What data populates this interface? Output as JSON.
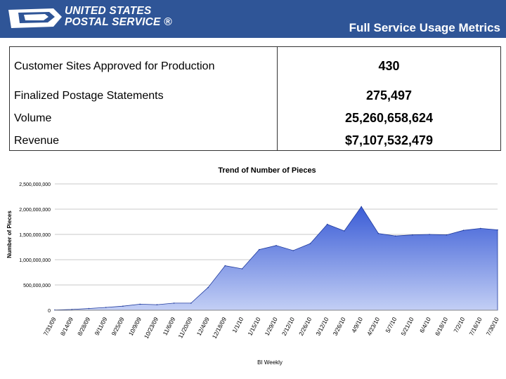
{
  "header": {
    "logo_line1": "UNITED STATES",
    "logo_line2": "POSTAL SERVICE ®",
    "title": "Full Service Usage Metrics",
    "colors": {
      "banner": "#2f5597",
      "text": "#ffffff"
    }
  },
  "metrics": [
    {
      "label": "Customer Sites Approved for Production",
      "value": "430"
    },
    {
      "label": "Finalized Postage Statements",
      "value": "275,497"
    },
    {
      "label": "Volume",
      "value": "25,260,658,624"
    },
    {
      "label": "Revenue",
      "value": "$7,107,532,479"
    }
  ],
  "chart_data": {
    "type": "area",
    "title": "Trend of Number of Pieces",
    "xlabel": "BI Weekly",
    "ylabel": "Number of Pieces",
    "ylim": [
      0,
      2500000000
    ],
    "yticks": [
      0,
      500000000,
      1000000000,
      1500000000,
      2000000000,
      2500000000
    ],
    "ytick_labels": [
      "0",
      "500,000,000",
      "1,000,000,000",
      "1,500,000,000",
      "2,000,000,000",
      "2,500,000,000"
    ],
    "categories": [
      "7/31/09",
      "8/14/09",
      "8/28/09",
      "9/11/09",
      "9/25/09",
      "10/9/09",
      "10/23/09",
      "11/6/09",
      "11/20/09",
      "12/4/09",
      "12/18/09",
      "1/1/10",
      "1/15/10",
      "1/29/10",
      "2/12/10",
      "2/26/10",
      "3/12/10",
      "3/26/10",
      "4/9/10",
      "4/23/10",
      "5/7/10",
      "5/21/10",
      "6/4/10",
      "6/18/10",
      "7/2/10",
      "7/16/10",
      "7/30/10"
    ],
    "values": [
      5000000,
      15000000,
      35000000,
      55000000,
      80000000,
      120000000,
      110000000,
      140000000,
      140000000,
      450000000,
      880000000,
      820000000,
      1200000000,
      1280000000,
      1180000000,
      1320000000,
      1700000000,
      1570000000,
      2050000000,
      1520000000,
      1470000000,
      1490000000,
      1500000000,
      1490000000,
      1580000000,
      1620000000,
      1590000000
    ],
    "grid": true,
    "fill_color_top": "#3a5cd6",
    "fill_color_bottom": "#c3cff5",
    "legend": "none"
  }
}
